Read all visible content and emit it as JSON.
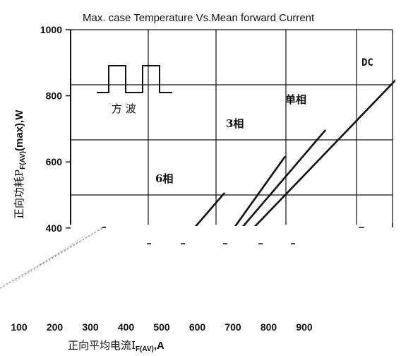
{
  "chart_data": {
    "type": "line",
    "title": "Max. case Temperature Vs.Mean forward Current",
    "ylabel": {
      "prefix": "正向功耗P",
      "sub": "F(AV)",
      "suffix": "(max),W"
    },
    "xlabel": {
      "prefix": "正向平均电流I",
      "sub": "F(AV)",
      "suffix": ",A"
    },
    "yticks": [
      400,
      600,
      800,
      1000
    ],
    "xticks": [
      100,
      200,
      300,
      400,
      500,
      600,
      700,
      800,
      900
    ],
    "xlim": [
      0,
      1000
    ],
    "ylim": [
      0,
      1000
    ],
    "grid": true,
    "inset_label": "方 波",
    "series": [
      {
        "name": "6相",
        "points": [
          [
            410,
            250
          ],
          [
            590,
            505
          ]
        ]
      },
      {
        "name": "3相",
        "points": [
          [
            430,
            250
          ],
          [
            550,
            290
          ],
          [
            740,
            615
          ]
        ]
      },
      {
        "name": "单相",
        "points": [
          [
            460,
            250
          ],
          [
            560,
            295
          ],
          [
            840,
            695
          ]
        ]
      },
      {
        "name": "DC",
        "points": [
          [
            470,
            250
          ],
          [
            580,
            295
          ],
          [
            1040,
            880
          ]
        ]
      }
    ]
  }
}
